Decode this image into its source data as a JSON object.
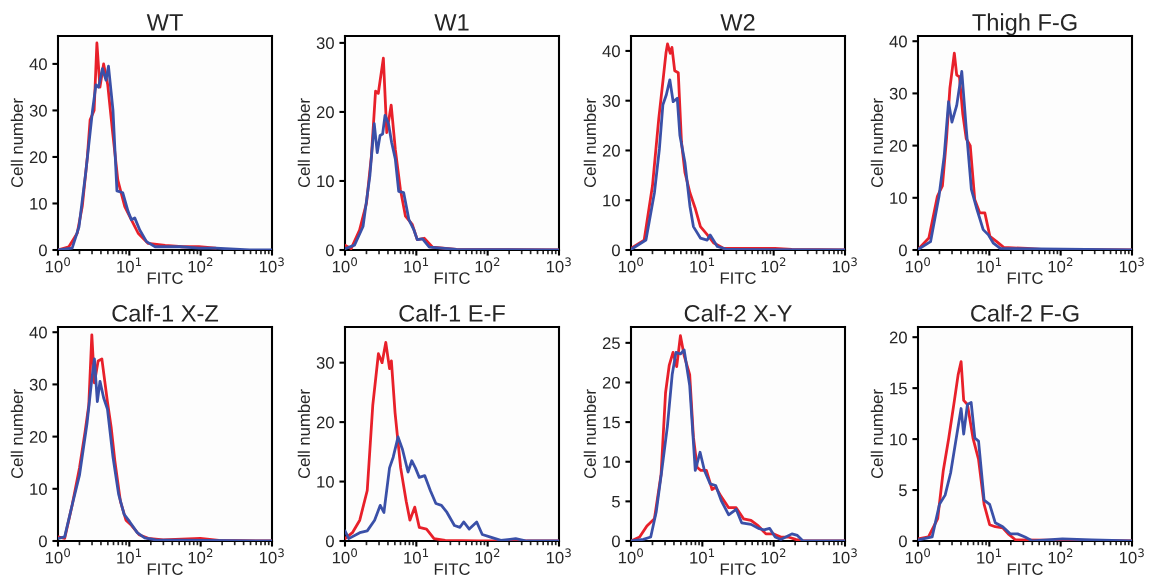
{
  "chart_data": [
    {
      "type": "line",
      "title": "WT",
      "xlabel": "FITC",
      "ylabel": "Cell number",
      "log": "x",
      "xlim": [
        1,
        1000
      ],
      "xticks": [
        {
          "value": 1,
          "label": "10$^{0}$"
        },
        {
          "value": 10,
          "label": "10$^{1}$"
        },
        {
          "value": 100,
          "label": "10$^{2}$"
        },
        {
          "value": 1000,
          "label": "10$^{3}$"
        }
      ],
      "ylim": [
        0,
        46
      ],
      "yticks": [
        0,
        10,
        20,
        30,
        40
      ],
      "series": [
        {
          "color": "#e8202a",
          "x": [
            1,
            1.42,
            1.86,
            2.19,
            2.58,
            2.82,
            3.21,
            3.51,
            3.87,
            4.36,
            4.98,
            5.86,
            6.9,
            8.6,
            10.7,
            13.3,
            18.4,
            31.8,
            54.8,
            94.6,
            163
          ],
          "values": [
            0,
            0.7,
            3.6,
            9.4,
            20,
            28,
            30,
            44.5,
            35,
            40,
            35.5,
            25,
            15,
            9.4,
            6.5,
            3.6,
            1.4,
            1,
            0.7,
            0.7,
            0.4
          ]
        },
        {
          "color": "#3a50a8",
          "x": [
            1,
            1.58,
            1.97,
            2.45,
            3.05,
            3.4,
            3.7,
            4.2,
            4.7,
            5.1,
            5.9,
            6.7,
            8.1,
            9.6,
            10.7,
            11.9,
            14,
            17.4,
            23,
            32,
            52,
            95,
            163,
            486,
            1000
          ],
          "values": [
            0,
            0.4,
            5,
            16.7,
            30,
            35.5,
            35,
            39,
            36.5,
            39.5,
            30,
            12.7,
            12.3,
            8.3,
            6.5,
            6.9,
            4.3,
            1.8,
            0.7,
            0.7,
            0.7,
            0.4,
            0.4,
            0,
            0
          ]
        }
      ]
    },
    {
      "type": "line",
      "title": "W1",
      "xlabel": "FITC",
      "ylabel": "Cell number",
      "log": "x",
      "xlim": [
        1,
        1000
      ],
      "xticks": [
        {
          "value": 1,
          "label": "10$^{0}$"
        },
        {
          "value": 10,
          "label": "10$^{1}$"
        },
        {
          "value": 100,
          "label": "10$^{2}$"
        },
        {
          "value": 1000,
          "label": "10$^{3}$"
        }
      ],
      "ylim": [
        0,
        31
      ],
      "yticks": [
        0,
        10,
        20,
        30
      ],
      "series": [
        {
          "color": "#e8202a",
          "x": [
            1,
            1.22,
            1.6,
            2,
            2.35,
            2.68,
            2.93,
            3.45,
            3.85,
            4.44,
            5.07,
            5.97,
            7.04,
            8.77,
            10.3,
            12.9,
            16.9,
            36.5,
            1000
          ],
          "values": [
            0.7,
            0.2,
            2.9,
            6.8,
            13.7,
            23,
            22.7,
            27.8,
            17,
            21,
            14.6,
            8.8,
            4.9,
            3.7,
            1.5,
            1.7,
            0.4,
            0.1,
            0
          ]
        },
        {
          "color": "#3a50a8",
          "x": [
            1,
            1.36,
            1.79,
            2.23,
            2.57,
            2.83,
            3.1,
            3.37,
            3.64,
            4.07,
            4.5,
            5.07,
            5.66,
            6.65,
            7.86,
            9.25,
            10.3,
            12.2,
            15.2,
            36.5,
            1000
          ],
          "values": [
            0.2,
            0.7,
            3.4,
            10.7,
            18.3,
            14.1,
            16.6,
            16.8,
            19.5,
            18.3,
            15.6,
            13.2,
            8.5,
            8.3,
            4.4,
            2.9,
            1.5,
            1.6,
            0.4,
            0.1,
            0
          ]
        }
      ]
    },
    {
      "type": "line",
      "title": "W2",
      "xlabel": "FITC",
      "ylabel": "Cell number",
      "log": "x",
      "xlim": [
        1,
        1000
      ],
      "xticks": [
        {
          "value": 1,
          "label": "10$^{0}$"
        },
        {
          "value": 10,
          "label": "10$^{1}$"
        },
        {
          "value": 100,
          "label": "10$^{2}$"
        },
        {
          "value": 1000,
          "label": "10$^{3}$"
        }
      ],
      "ylim": [
        0,
        43
      ],
      "yticks": [
        0,
        10,
        20,
        30,
        40
      ],
      "series": [
        {
          "color": "#e8202a",
          "x": [
            1,
            1.53,
            2.0,
            2.45,
            2.8,
            3.1,
            3.25,
            3.55,
            3.75,
            4.1,
            4.6,
            5.1,
            5.7,
            6.7,
            7.9,
            9.4,
            11.7,
            14.5,
            20,
            43,
            104,
            180,
            1000
          ],
          "values": [
            0.3,
            2,
            12.9,
            26.4,
            33.9,
            39.7,
            41.4,
            39.5,
            40.7,
            36,
            35.6,
            21.7,
            15.6,
            11.5,
            8.5,
            4.7,
            3.1,
            1.4,
            0.3,
            0.3,
            0.3,
            0.1,
            0
          ]
        },
        {
          "color": "#3a50a8",
          "x": [
            1,
            1.62,
            2.13,
            2.5,
            2.8,
            3.13,
            3.5,
            3.9,
            4.45,
            4.85,
            5.7,
            6.7,
            7.5,
            9.4,
            11.7,
            12.9,
            16.2,
            22.5,
            1000
          ],
          "values": [
            0.1,
            2,
            11.5,
            20.3,
            29.2,
            31.2,
            34.2,
            29.8,
            30.5,
            23,
            17.6,
            8.8,
            4.7,
            2.4,
            2,
            3,
            0.7,
            0.1,
            0
          ]
        }
      ]
    },
    {
      "type": "line",
      "title": "Thigh F-G",
      "xlabel": "FITC",
      "ylabel": "Cell number",
      "log": "x",
      "xlim": [
        1,
        1000
      ],
      "xticks": [
        {
          "value": 1,
          "label": "10$^{0}$"
        },
        {
          "value": 10,
          "label": "10$^{1}$"
        },
        {
          "value": 100,
          "label": "10$^{2}$"
        },
        {
          "value": 1000,
          "label": "10$^{3}$"
        }
      ],
      "ylim": [
        0,
        41
      ],
      "yticks": [
        0,
        10,
        20,
        30,
        40
      ],
      "series": [
        {
          "color": "#e8202a",
          "x": [
            1,
            1.42,
            1.87,
            2.2,
            2.51,
            2.8,
            3.23,
            3.49,
            3.81,
            4.25,
            4.75,
            5.4,
            6.24,
            7.35,
            8.66,
            10.2,
            12.7,
            15.9,
            34,
            53,
            1000
          ],
          "values": [
            0.1,
            2.3,
            10.3,
            12.3,
            21.3,
            31,
            37.7,
            33.5,
            33.2,
            26,
            21.3,
            20,
            9.7,
            7.1,
            7.1,
            2.6,
            1.6,
            0.5,
            0.3,
            0.1,
            0
          ]
        },
        {
          "color": "#3a50a8",
          "x": [
            1,
            1.5,
            1.97,
            2.33,
            2.68,
            2.99,
            3.49,
            4.11,
            4.75,
            5.6,
            6.6,
            8.2,
            9.7,
            11.4,
            14.2,
            1000
          ],
          "values": [
            0.1,
            1.6,
            10.3,
            18,
            28.4,
            24.5,
            27.7,
            34.2,
            23.2,
            11.6,
            8.1,
            3.9,
            2.9,
            1.3,
            0.3,
            0
          ]
        }
      ]
    },
    {
      "type": "line",
      "title": "Calf-1 X-Z",
      "xlabel": "FITC",
      "ylabel": "Cell number",
      "log": "x",
      "xlim": [
        1,
        1000
      ],
      "xticks": [
        {
          "value": 1,
          "label": "10$^{0}$"
        },
        {
          "value": 10,
          "label": "10$^{1}$"
        },
        {
          "value": 100,
          "label": "10$^{2}$"
        },
        {
          "value": 1000,
          "label": "10$^{3}$"
        }
      ],
      "ylim": [
        0,
        41
      ],
      "yticks": [
        0,
        10,
        20,
        30,
        40
      ],
      "series": [
        {
          "color": "#e8202a",
          "x": [
            1,
            1.24,
            1.58,
            2.0,
            2.4,
            2.7,
            2.98,
            3.24,
            3.65,
            4.12,
            4.93,
            5.56,
            6.26,
            7.5,
            8.97,
            10.7,
            13.7,
            18.4,
            29.8,
            98.8,
            180,
            1000
          ],
          "values": [
            0.8,
            0.5,
            6.9,
            14,
            21,
            26,
            39.5,
            30.3,
            34.5,
            34.9,
            26.7,
            21.8,
            15.4,
            7.6,
            4,
            3,
            1.2,
            0.5,
            0.2,
            0.5,
            0.1,
            0
          ]
        },
        {
          "color": "#3a50a8",
          "x": [
            1,
            1.24,
            1.58,
            2.0,
            2.55,
            2.98,
            3.24,
            3.56,
            3.88,
            4.37,
            4.93,
            5.9,
            7.07,
            8.45,
            10.1,
            12.9,
            16.4,
            23.4,
            1000
          ],
          "values": [
            0.5,
            0.8,
            6.9,
            12.6,
            22.5,
            31,
            34.9,
            26.7,
            30.6,
            27.4,
            25.3,
            16.1,
            9,
            5.1,
            3.7,
            1.6,
            0.6,
            0.2,
            0
          ]
        }
      ]
    },
    {
      "type": "line",
      "title": "Calf-1 E-F",
      "xlabel": "FITC",
      "ylabel": "Cell number",
      "log": "x",
      "xlim": [
        1,
        1000
      ],
      "xticks": [
        {
          "value": 1,
          "label": "10$^{0}$"
        },
        {
          "value": 10,
          "label": "10$^{1}$"
        },
        {
          "value": 100,
          "label": "10$^{2}$"
        },
        {
          "value": 1000,
          "label": "10$^{3}$"
        }
      ],
      "ylim": [
        0,
        36
      ],
      "yticks": [
        0,
        10,
        20,
        30
      ],
      "series": [
        {
          "color": "#e8202a",
          "x": [
            1,
            1.27,
            1.61,
            2.05,
            2.45,
            2.94,
            3.31,
            3.73,
            4.21,
            4.47,
            5.03,
            6.03,
            7.21,
            8.13,
            9.5,
            11,
            13.9,
            17.7,
            25.4,
            74,
            1000
          ],
          "values": [
            0.4,
            1.4,
            3.5,
            8.5,
            22.8,
            31.5,
            30,
            33.4,
            29,
            30.3,
            21.6,
            12.3,
            6.7,
            3.5,
            5.7,
            2.3,
            2,
            0.4,
            0.1,
            0,
            0
          ]
        },
        {
          "color": "#3a50a8",
          "x": [
            1,
            1.13,
            1.61,
            2.05,
            2.6,
            3.12,
            3.51,
            4.21,
            4.74,
            5.54,
            6.4,
            7.65,
            8.63,
            9.7,
            11,
            13.1,
            15.7,
            18.8,
            22.5,
            26.9,
            34.2,
            40.9,
            46.1,
            55.2,
            70.2,
            84,
            107,
            153,
            247,
            353,
            1000
          ],
          "values": [
            1.7,
            0.4,
            1.4,
            1.7,
            3.5,
            6,
            4.8,
            12.3,
            14.1,
            17.5,
            15.4,
            11.6,
            13.5,
            12.3,
            10.7,
            11,
            8.5,
            6.3,
            6,
            4.8,
            2.6,
            2.3,
            3.2,
            2,
            3.2,
            1.1,
            0.7,
            0.1,
            0.4,
            0,
            0
          ]
        }
      ]
    },
    {
      "type": "line",
      "title": "Calf-2 X-Y",
      "xlabel": "FITC",
      "ylabel": "Cell number",
      "log": "x",
      "xlim": [
        1,
        1000
      ],
      "xticks": [
        {
          "value": 1,
          "label": "10$^{0}$"
        },
        {
          "value": 10,
          "label": "10$^{1}$"
        },
        {
          "value": 100,
          "label": "10$^{2}$"
        },
        {
          "value": 1000,
          "label": "10$^{3}$"
        }
      ],
      "ylim": [
        0,
        27
      ],
      "yticks": [
        0,
        5,
        10,
        15,
        20,
        25
      ],
      "series": [
        {
          "color": "#e8202a",
          "x": [
            1,
            1.32,
            1.67,
            2.13,
            2.64,
            3.05,
            3.44,
            3.88,
            4.37,
            4.93,
            5.56,
            6.65,
            7.5,
            8.45,
            9.53,
            11.4,
            13.7,
            15.4,
            18.4,
            23.4,
            29.8,
            37.8,
            48.1,
            61,
            77.8,
            98.8,
            126,
            160,
            203,
            258,
            1000
          ],
          "values": [
            0,
            0.5,
            1.9,
            2.8,
            8.4,
            18.7,
            22.2,
            23.8,
            22,
            25.9,
            23.4,
            21,
            13.1,
            9.3,
            8.9,
            8.9,
            6.5,
            6.8,
            5.6,
            4.2,
            4.2,
            2.8,
            2.6,
            1.9,
            0.9,
            0.9,
            0.5,
            0.5,
            0.2,
            0,
            0
          ]
        },
        {
          "color": "#3a50a8",
          "x": [
            1,
            1.49,
            1.89,
            2.26,
            2.7,
            3.24,
            3.78,
            4.27,
            4.93,
            5.56,
            6.65,
            7.96,
            9.3,
            10.7,
            12.9,
            15.4,
            18.4,
            23.4,
            29.8,
            35.6,
            48.1,
            61,
            73.2,
            87.7,
            105,
            126,
            180,
            215,
            258,
            1000
          ],
          "values": [
            0,
            0.2,
            0.5,
            3.7,
            8.9,
            14.5,
            21,
            23.8,
            23.6,
            24.1,
            19.6,
            8.9,
            11.2,
            8.9,
            7.2,
            7,
            5.1,
            3.3,
            4,
            2.3,
            2.1,
            1.6,
            1.4,
            1.6,
            0.5,
            0.2,
            0.9,
            0.7,
            0,
            0
          ]
        }
      ]
    },
    {
      "type": "line",
      "title": "Calf-2 F-G",
      "xlabel": "FITC",
      "ylabel": "Cell number",
      "log": "x",
      "xlim": [
        1,
        1000
      ],
      "xticks": [
        {
          "value": 1,
          "label": "10$^{0}$"
        },
        {
          "value": 10,
          "label": "10$^{1}$"
        },
        {
          "value": 100,
          "label": "10$^{2}$"
        },
        {
          "value": 1000,
          "label": "10$^{3}$"
        }
      ],
      "ylim": [
        0,
        21
      ],
      "yticks": [
        0,
        5,
        10,
        15,
        20
      ],
      "series": [
        {
          "color": "#e8202a",
          "x": [
            1,
            1.4,
            1.89,
            2.26,
            2.7,
            3.24,
            3.65,
            4.02,
            4.37,
            4.93,
            5.9,
            7.06,
            8.45,
            10.1,
            12.1,
            15.4,
            18.4,
            23.4,
            1000
          ],
          "values": [
            0.2,
            0.4,
            2.2,
            6.9,
            10.1,
            13.8,
            16.3,
            17.6,
            13.8,
            13.4,
            10.1,
            8,
            3.6,
            1.6,
            1.4,
            1.3,
            0.7,
            0.1,
            0
          ]
        },
        {
          "color": "#3a50a8",
          "x": [
            1,
            1.58,
            2.0,
            2.4,
            2.87,
            3.44,
            4.02,
            4.37,
            4.93,
            5.56,
            6.27,
            7.06,
            8.45,
            10.1,
            12.1,
            15.4,
            19.6,
            24.9,
            31.6,
            40.2,
            106,
            274,
            1000
          ],
          "values": [
            0.1,
            0.4,
            3.6,
            4.5,
            6.7,
            10.1,
            13,
            10.5,
            13.4,
            13.6,
            10.1,
            9.8,
            4,
            3.6,
            1.8,
            1.4,
            0.7,
            0.7,
            0.4,
            0,
            0.2,
            0.1,
            0
          ]
        }
      ]
    }
  ]
}
